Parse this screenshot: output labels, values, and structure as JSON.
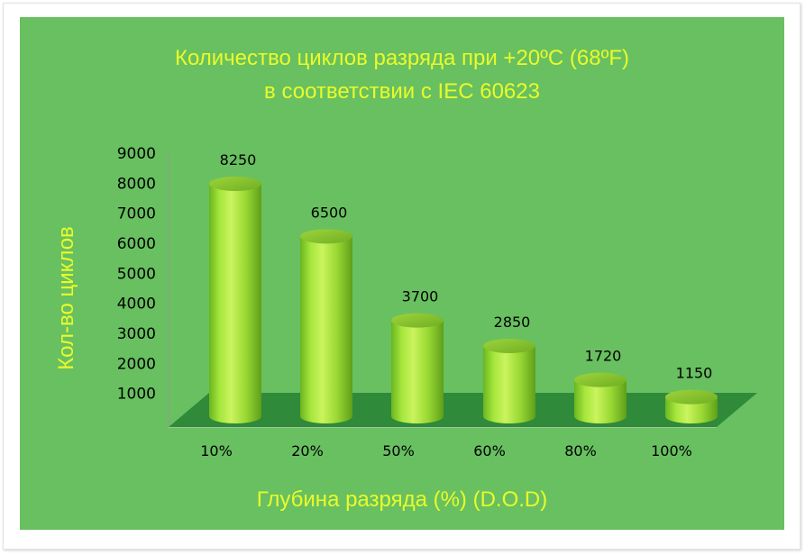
{
  "chart_data": {
    "type": "bar",
    "title_line1": "Количество циклов разряда при +20ºC (68ºF)",
    "title_line2": "в соответствии с IEC 60623",
    "ylabel": "Кол-во циклов",
    "xlabel": "Глубина разряда (%) (D.O.D)",
    "categories": [
      "10%",
      "20%",
      "50%",
      "60%",
      "80%",
      "100%"
    ],
    "values": [
      8250,
      6500,
      3700,
      2850,
      1720,
      1150
    ],
    "yticks": [
      "1000",
      "2000",
      "3000",
      "4000",
      "5000",
      "6000",
      "7000",
      "8000",
      "9000"
    ],
    "ylim": [
      0,
      9000
    ],
    "style_3d_cylinders": true,
    "colors": {
      "background": "#68c060",
      "floor": "#2f8a3a",
      "bar_light": "#c8f25a",
      "bar_mid": "#8fd92e",
      "bar_dark": "#5aa11c",
      "title_text": "#e9fb2a"
    }
  }
}
